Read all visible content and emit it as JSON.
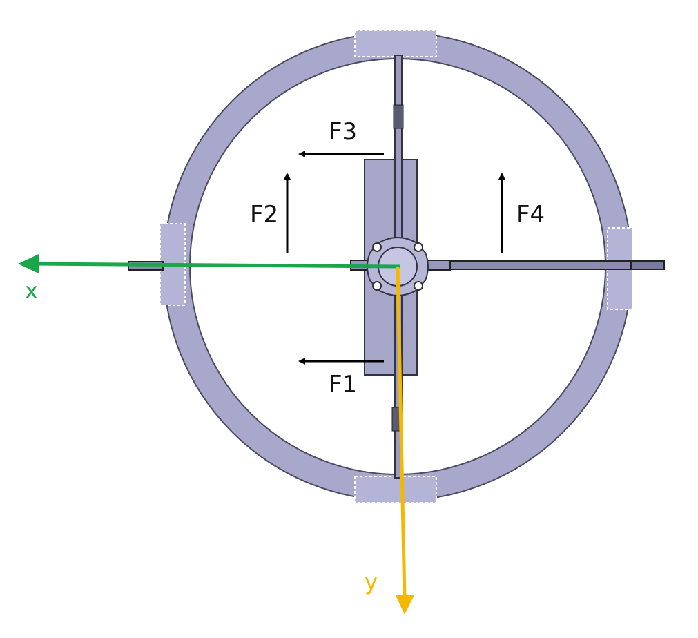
{
  "forces": {
    "f1": "F1",
    "f2": "F2",
    "f3": "F3",
    "f4": "F4"
  },
  "axes": {
    "x_label": "x",
    "y_label": "y",
    "x_color": "#1aa64a",
    "y_color": "#f5b800"
  },
  "colors": {
    "ring_fill": "#a8a8cc",
    "ring_stroke": "#4a4a60",
    "segment_fill": "#b4b4d6",
    "plate_fill": "#a6a6c8",
    "arrow_color": "#000000"
  }
}
